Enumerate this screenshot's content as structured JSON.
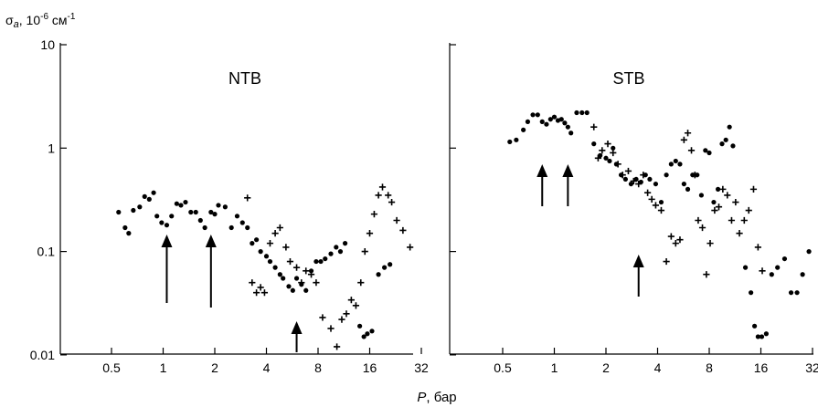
{
  "figure": {
    "ylabel": "σa, 10-6 см-1",
    "ylabel_main": "σ",
    "ylabel_sub": "a",
    "ylabel_mid": ", 10",
    "ylabel_exp1": "-6",
    "ylabel_unit": " см",
    "ylabel_exp2": "-1",
    "xlabel": "P, бар",
    "xlabel_var": "P",
    "xlabel_unit": ", бар"
  },
  "chart_data": [
    {
      "type": "scatter",
      "title": "NTB",
      "xscale": "log2",
      "yscale": "log10",
      "xlim": [
        0.3,
        36
      ],
      "ylim": [
        0.01,
        10
      ],
      "x_ticks": [
        "0.5",
        "1",
        "2",
        "4",
        "8",
        "16",
        "32"
      ],
      "y_ticks": [
        "0.01",
        "0.1",
        "1",
        "10"
      ],
      "grid": false,
      "series": [
        {
          "marker": "dot",
          "points": [
            [
              0.55,
              0.24
            ],
            [
              0.6,
              0.17
            ],
            [
              0.63,
              0.15
            ],
            [
              0.67,
              0.25
            ],
            [
              0.73,
              0.27
            ],
            [
              0.78,
              0.34
            ],
            [
              0.83,
              0.32
            ],
            [
              0.88,
              0.37
            ],
            [
              0.92,
              0.22
            ],
            [
              0.98,
              0.19
            ],
            [
              1.05,
              0.18
            ],
            [
              1.12,
              0.22
            ],
            [
              1.2,
              0.29
            ],
            [
              1.27,
              0.28
            ],
            [
              1.35,
              0.3
            ],
            [
              1.45,
              0.24
            ],
            [
              1.55,
              0.24
            ],
            [
              1.65,
              0.2
            ],
            [
              1.75,
              0.17
            ],
            [
              1.9,
              0.24
            ],
            [
              2.0,
              0.23
            ],
            [
              2.1,
              0.28
            ],
            [
              2.3,
              0.27
            ],
            [
              2.5,
              0.17
            ],
            [
              2.7,
              0.22
            ],
            [
              2.9,
              0.19
            ],
            [
              3.1,
              0.17
            ],
            [
              3.3,
              0.12
            ],
            [
              3.5,
              0.13
            ],
            [
              3.7,
              0.1
            ],
            [
              4.0,
              0.09
            ],
            [
              4.2,
              0.08
            ],
            [
              4.5,
              0.07
            ],
            [
              4.8,
              0.06
            ],
            [
              5.0,
              0.055
            ],
            [
              5.4,
              0.046
            ],
            [
              5.7,
              0.042
            ],
            [
              6.0,
              0.055
            ],
            [
              6.4,
              0.048
            ],
            [
              6.8,
              0.042
            ],
            [
              7.3,
              0.065
            ],
            [
              7.8,
              0.08
            ],
            [
              8.3,
              0.08
            ],
            [
              8.8,
              0.085
            ],
            [
              9.5,
              0.095
            ],
            [
              10.2,
              0.11
            ],
            [
              10.8,
              0.1
            ],
            [
              11.5,
              0.12
            ],
            [
              14.0,
              0.019
            ],
            [
              14.8,
              0.015
            ],
            [
              15.5,
              0.016
            ],
            [
              16.5,
              0.017
            ],
            [
              18.0,
              0.06
            ],
            [
              19.5,
              0.07
            ],
            [
              21.0,
              0.075
            ]
          ]
        },
        {
          "marker": "cross",
          "points": [
            [
              3.1,
              0.33
            ],
            [
              3.3,
              0.05
            ],
            [
              3.5,
              0.04
            ],
            [
              3.7,
              0.045
            ],
            [
              3.9,
              0.04
            ],
            [
              4.2,
              0.12
            ],
            [
              4.5,
              0.15
            ],
            [
              4.8,
              0.17
            ],
            [
              5.2,
              0.11
            ],
            [
              5.5,
              0.08
            ],
            [
              6.0,
              0.07
            ],
            [
              6.4,
              0.05
            ],
            [
              6.8,
              0.065
            ],
            [
              7.3,
              0.06
            ],
            [
              7.8,
              0.05
            ],
            [
              8.5,
              0.023
            ],
            [
              9.5,
              0.018
            ],
            [
              10.3,
              0.012
            ],
            [
              11.0,
              0.022
            ],
            [
              11.7,
              0.025
            ],
            [
              12.5,
              0.034
            ],
            [
              13.3,
              0.03
            ],
            [
              14.2,
              0.05
            ],
            [
              15.0,
              0.1
            ],
            [
              16.0,
              0.15
            ],
            [
              17.0,
              0.23
            ],
            [
              18.0,
              0.35
            ],
            [
              19.0,
              0.42
            ],
            [
              20.5,
              0.35
            ],
            [
              21.5,
              0.3
            ],
            [
              23.0,
              0.2
            ],
            [
              25.0,
              0.16
            ],
            [
              27.5,
              0.11
            ]
          ]
        }
      ],
      "arrows": [
        1.05,
        1.9,
        6.0
      ]
    },
    {
      "type": "scatter",
      "title": "STB",
      "xscale": "log2",
      "yscale": "log10",
      "xlim": [
        0.3,
        36
      ],
      "ylim": [
        0.01,
        10
      ],
      "x_ticks": [
        "0.5",
        "1",
        "2",
        "4",
        "8",
        "16",
        "32"
      ],
      "y_ticks": [],
      "grid": false,
      "series": [
        {
          "marker": "dot",
          "points": [
            [
              0.55,
              1.15
            ],
            [
              0.6,
              1.2
            ],
            [
              0.66,
              1.5
            ],
            [
              0.7,
              1.8
            ],
            [
              0.75,
              2.1
            ],
            [
              0.8,
              2.1
            ],
            [
              0.85,
              1.8
            ],
            [
              0.9,
              1.7
            ],
            [
              0.95,
              1.9
            ],
            [
              1.0,
              2.0
            ],
            [
              1.05,
              1.85
            ],
            [
              1.1,
              1.9
            ],
            [
              1.15,
              1.75
            ],
            [
              1.2,
              1.6
            ],
            [
              1.25,
              1.4
            ],
            [
              1.35,
              2.2
            ],
            [
              1.45,
              2.2
            ],
            [
              1.55,
              2.2
            ],
            [
              1.7,
              1.1
            ],
            [
              1.85,
              0.85
            ],
            [
              2.0,
              0.8
            ],
            [
              2.1,
              0.75
            ],
            [
              2.2,
              1.0
            ],
            [
              2.3,
              0.7
            ],
            [
              2.45,
              0.55
            ],
            [
              2.6,
              0.5
            ],
            [
              2.8,
              0.45
            ],
            [
              3.0,
              0.5
            ],
            [
              3.2,
              0.47
            ],
            [
              3.4,
              0.55
            ],
            [
              3.6,
              0.5
            ],
            [
              3.9,
              0.45
            ],
            [
              4.2,
              0.3
            ],
            [
              4.5,
              0.55
            ],
            [
              4.8,
              0.7
            ],
            [
              5.1,
              0.75
            ],
            [
              5.4,
              0.7
            ],
            [
              5.7,
              0.45
            ],
            [
              6.0,
              0.4
            ],
            [
              6.4,
              0.55
            ],
            [
              6.8,
              0.55
            ],
            [
              7.2,
              0.35
            ],
            [
              7.6,
              0.95
            ],
            [
              8.0,
              0.9
            ],
            [
              8.5,
              0.3
            ],
            [
              9.0,
              0.4
            ],
            [
              9.5,
              1.1
            ],
            [
              10.0,
              1.2
            ],
            [
              10.5,
              1.6
            ],
            [
              11.0,
              1.05
            ],
            [
              13.0,
              0.07
            ],
            [
              14.0,
              0.04
            ],
            [
              14.7,
              0.019
            ],
            [
              15.4,
              0.015
            ],
            [
              16.2,
              0.015
            ],
            [
              17.2,
              0.016
            ],
            [
              18.5,
              0.06
            ],
            [
              20.0,
              0.07
            ],
            [
              22.0,
              0.085
            ],
            [
              24.0,
              0.04
            ],
            [
              26.0,
              0.04
            ],
            [
              28.0,
              0.06
            ],
            [
              30.5,
              0.1
            ]
          ]
        },
        {
          "marker": "cross",
          "points": [
            [
              1.7,
              1.6
            ],
            [
              1.8,
              0.8
            ],
            [
              1.9,
              0.95
            ],
            [
              2.05,
              1.1
            ],
            [
              2.2,
              0.9
            ],
            [
              2.35,
              0.7
            ],
            [
              2.5,
              0.55
            ],
            [
              2.7,
              0.6
            ],
            [
              2.9,
              0.48
            ],
            [
              3.1,
              0.45
            ],
            [
              3.3,
              0.55
            ],
            [
              3.5,
              0.37
            ],
            [
              3.7,
              0.32
            ],
            [
              3.9,
              0.28
            ],
            [
              4.2,
              0.25
            ],
            [
              4.5,
              0.08
            ],
            [
              4.8,
              0.14
            ],
            [
              5.1,
              0.12
            ],
            [
              5.4,
              0.13
            ],
            [
              5.7,
              1.2
            ],
            [
              6.0,
              1.4
            ],
            [
              6.3,
              0.95
            ],
            [
              6.6,
              0.55
            ],
            [
              6.9,
              0.2
            ],
            [
              7.3,
              0.17
            ],
            [
              7.7,
              0.06
            ],
            [
              8.1,
              0.12
            ],
            [
              8.6,
              0.25
            ],
            [
              9.1,
              0.27
            ],
            [
              9.6,
              0.4
            ],
            [
              10.2,
              0.35
            ],
            [
              10.8,
              0.2
            ],
            [
              11.4,
              0.3
            ],
            [
              12.0,
              0.15
            ],
            [
              12.8,
              0.2
            ],
            [
              13.6,
              0.25
            ],
            [
              14.5,
              0.4
            ],
            [
              15.4,
              0.11
            ],
            [
              16.3,
              0.065
            ]
          ]
        }
      ],
      "arrows": [
        0.85,
        1.2,
        3.1
      ]
    }
  ]
}
